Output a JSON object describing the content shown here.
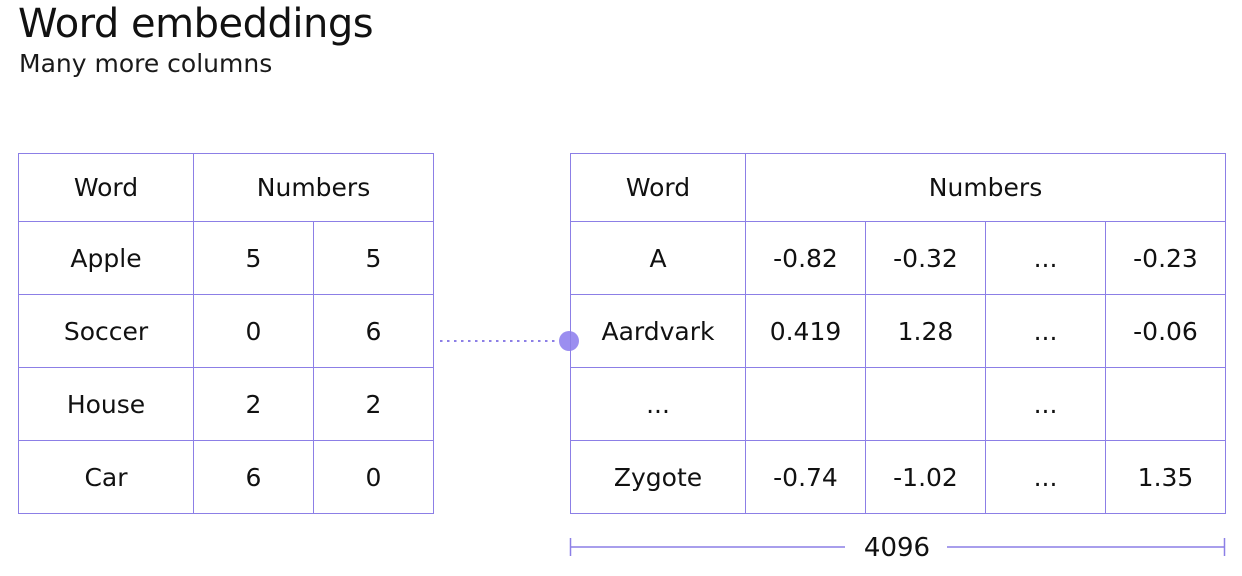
{
  "header": {
    "title": "Word embeddings",
    "subtitle": "Many more columns"
  },
  "left_table": {
    "headers": [
      "Word",
      "Numbers"
    ],
    "rows": [
      [
        "Apple",
        "5",
        "5"
      ],
      [
        "Soccer",
        "0",
        "6"
      ],
      [
        "House",
        "2",
        "2"
      ],
      [
        "Car",
        "6",
        "0"
      ]
    ]
  },
  "right_table": {
    "headers": [
      "Word",
      "Numbers"
    ],
    "rows": [
      [
        "A",
        "-0.82",
        "-0.32",
        "...",
        "-0.23"
      ],
      [
        "Aardvark",
        "0.419",
        "1.28",
        "...",
        "-0.06"
      ],
      [
        "...",
        "",
        "",
        "...",
        ""
      ],
      [
        "Zygote",
        "-0.74",
        "-1.02",
        "...",
        "1.35"
      ]
    ]
  },
  "dimension": {
    "label": "4096"
  },
  "colors": {
    "grid_line": "#8c7fe6",
    "connector_dot": "#9b8ef0",
    "text": "#111111"
  }
}
